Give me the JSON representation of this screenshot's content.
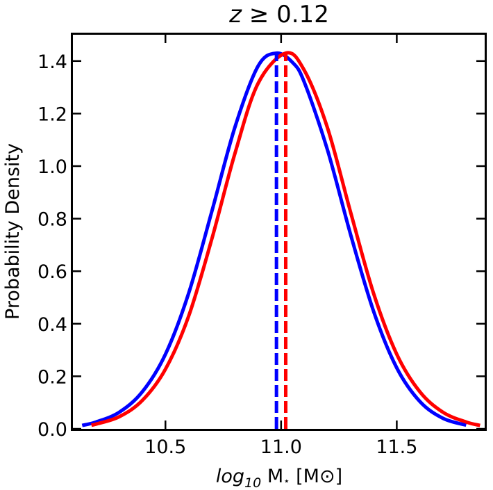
{
  "chart_data": {
    "type": "line",
    "title_var": "z",
    "title_rest": " ≥ 0.12",
    "xlabel_log": "log",
    "xlabel_sub": "10",
    "xlabel_rest": " M",
    "xlabel_star": "⋆",
    "xlabel_unit": " [M",
    "xlabel_sun": "⊙",
    "xlabel_close": "]",
    "ylabel": "Probability Density",
    "xlim": [
      10.1,
      11.88
    ],
    "ylim": [
      0.0,
      1.5
    ],
    "xticks": [
      10.5,
      11.0,
      11.5
    ],
    "xtick_labels": [
      "10.5",
      "11.0",
      "11.5"
    ],
    "yticks": [
      0.0,
      0.2,
      0.4,
      0.6,
      0.8,
      1.0,
      1.2,
      1.4
    ],
    "ytick_labels": [
      "0.0",
      "0.2",
      "0.4",
      "0.6",
      "0.8",
      "1.0",
      "1.2",
      "1.4"
    ],
    "series": [
      {
        "name": "blue",
        "color": "#0000ff",
        "x": [
          10.14,
          10.2,
          10.3,
          10.4,
          10.5,
          10.6,
          10.7,
          10.8,
          10.9,
          10.98,
          11.05,
          11.1,
          11.2,
          11.3,
          11.4,
          11.5,
          11.6,
          11.7,
          11.8
        ],
        "y": [
          0.013,
          0.026,
          0.063,
          0.141,
          0.284,
          0.515,
          0.826,
          1.147,
          1.38,
          1.43,
          1.394,
          1.32,
          1.063,
          0.741,
          0.447,
          0.232,
          0.104,
          0.04,
          0.014
        ],
        "marker_x": 10.98
      },
      {
        "name": "red",
        "color": "#ff0000",
        "x": [
          10.18,
          10.2,
          10.3,
          10.4,
          10.5,
          10.6,
          10.7,
          10.8,
          10.9,
          11.02,
          11.1,
          11.2,
          11.3,
          11.4,
          11.5,
          11.6,
          11.7,
          11.8,
          11.86
        ],
        "y": [
          0.014,
          0.018,
          0.046,
          0.108,
          0.227,
          0.428,
          0.721,
          1.047,
          1.314,
          1.43,
          1.365,
          1.147,
          0.826,
          0.515,
          0.284,
          0.141,
          0.063,
          0.026,
          0.013
        ],
        "marker_x": 11.02
      }
    ]
  }
}
